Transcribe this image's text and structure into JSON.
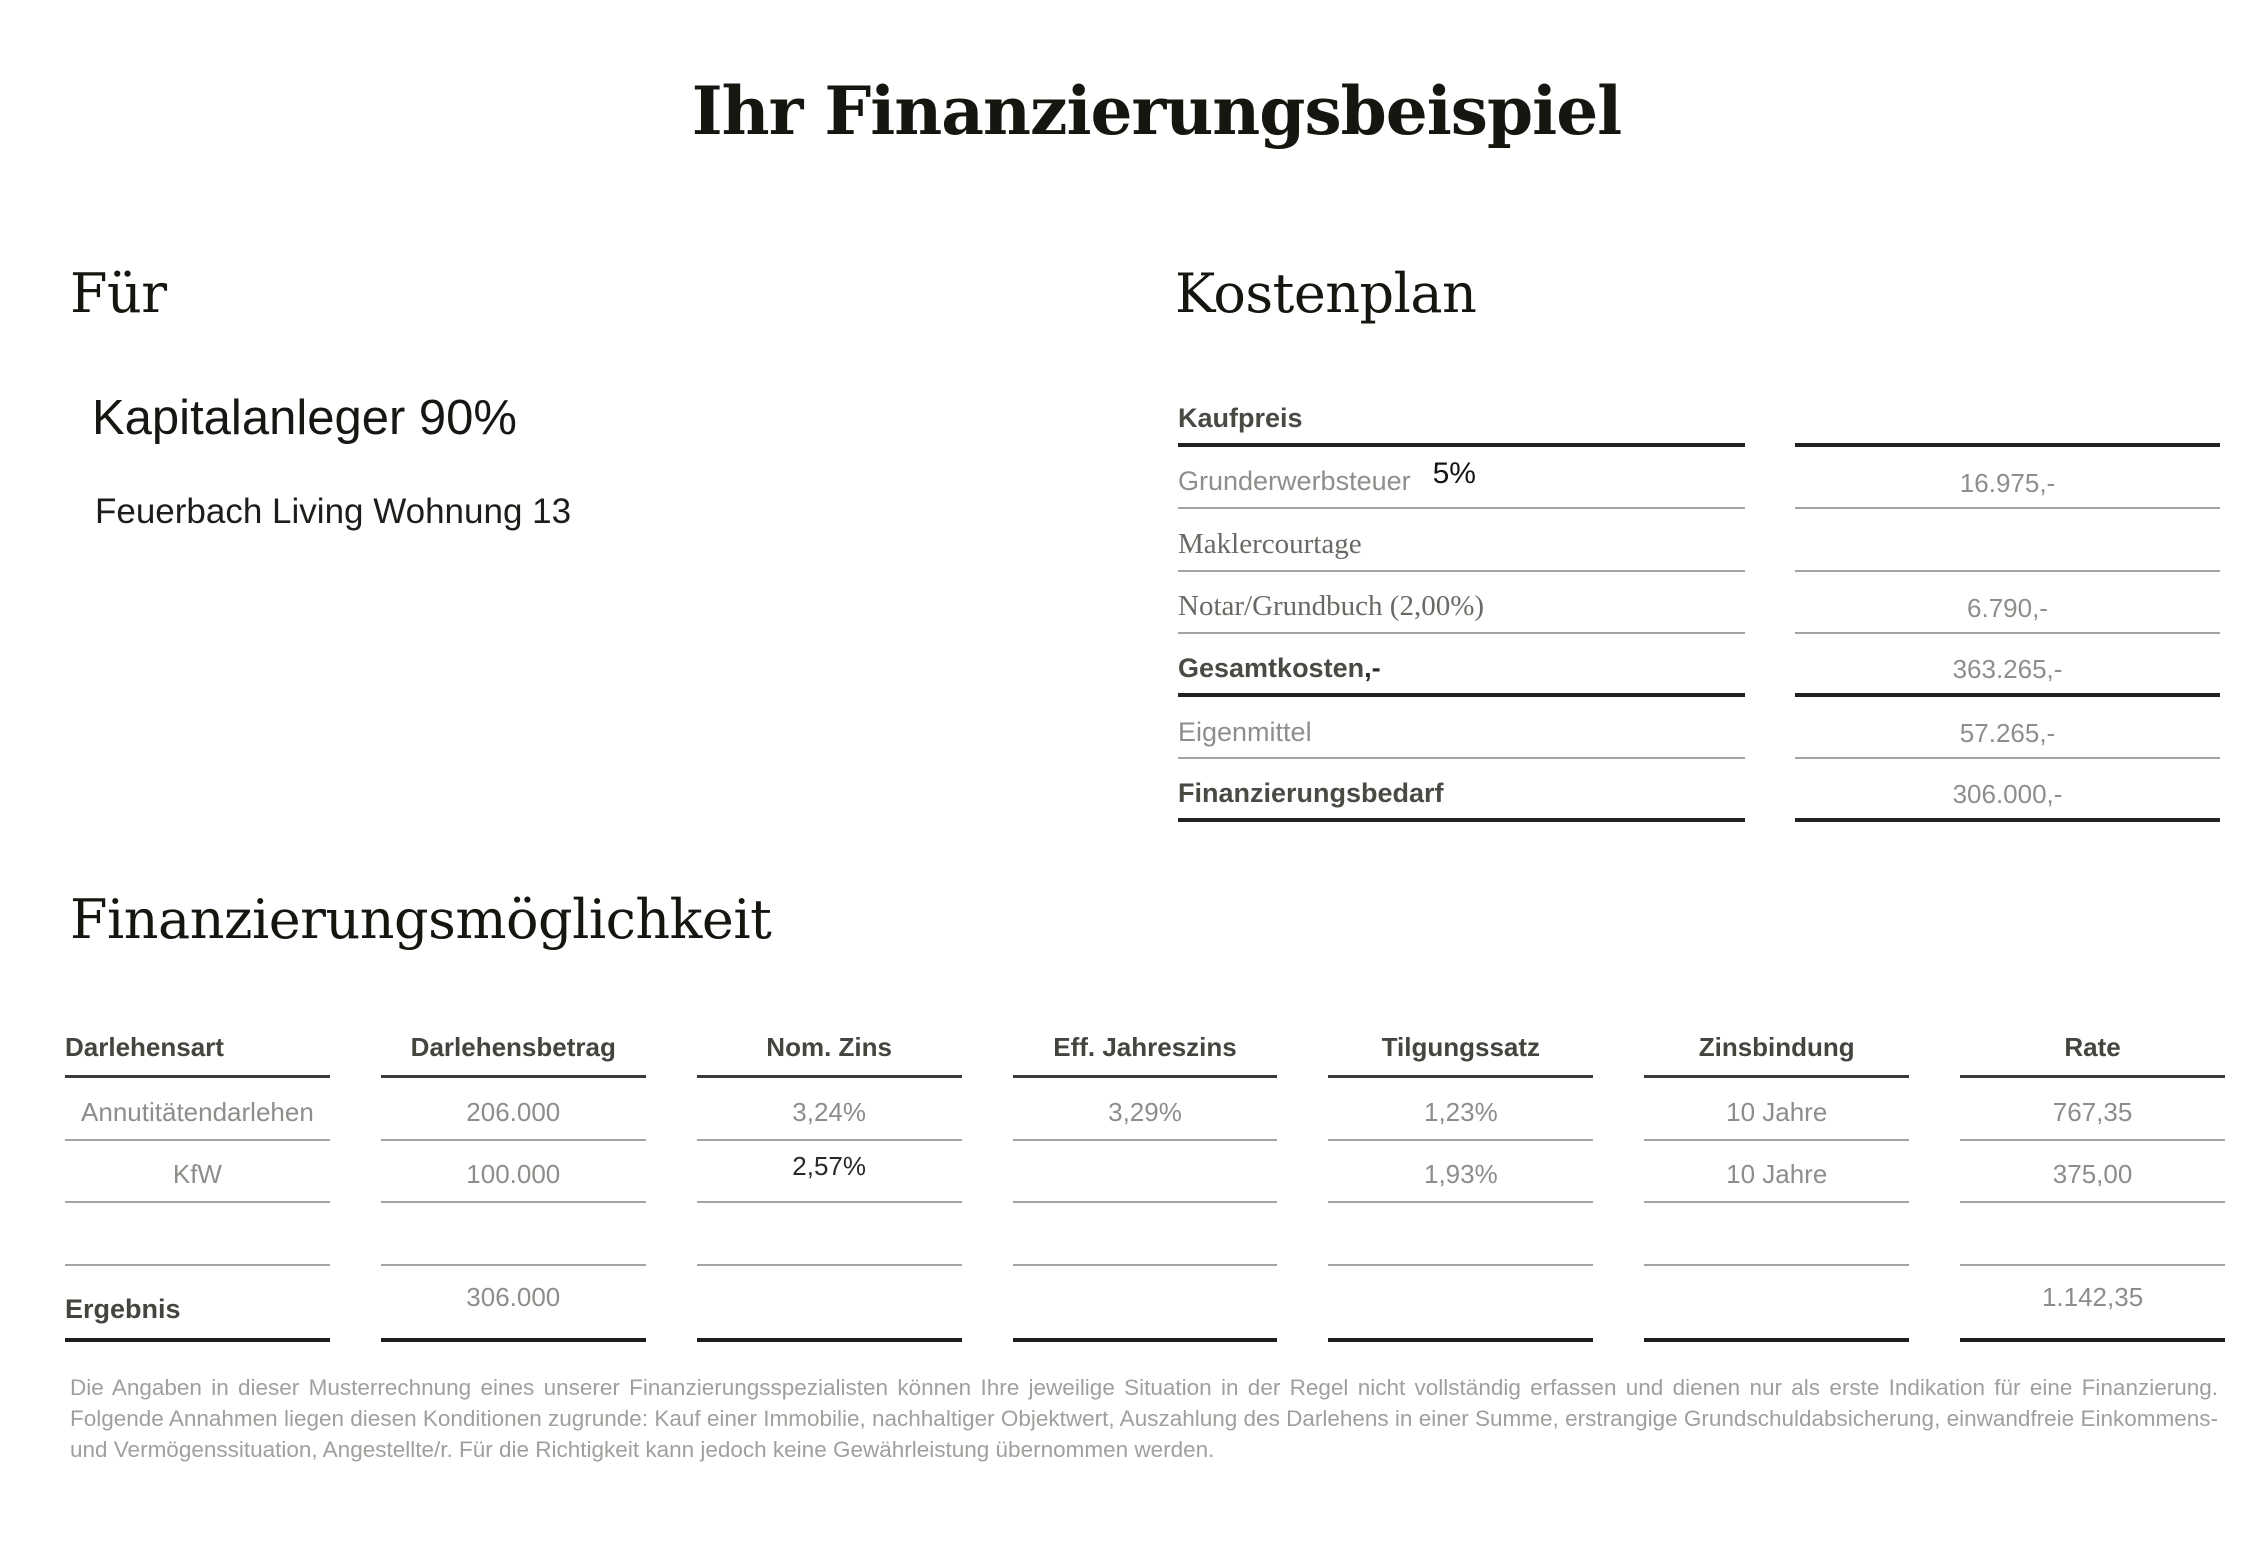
{
  "title": "Ihr Finanzierungsbeispiel",
  "for_section": {
    "heading": "Für",
    "client": "Kapitalanleger 90%",
    "property": "Feuerbach Living Wohnung 13"
  },
  "kostenplan": {
    "heading": "Kostenplan",
    "rows": [
      {
        "label": "Kaufpreis",
        "value": ""
      },
      {
        "label": "Grunderwerbsteuer",
        "annotation": "5%",
        "value": "16.975,-"
      },
      {
        "label": "Maklercourtage",
        "value": ""
      },
      {
        "label": "Notar/Grundbuch (2,00%)",
        "value": "6.790,-"
      },
      {
        "label": "Gesamtkosten",
        "suffix": ",-",
        "value": "363.265,-"
      },
      {
        "label": "Eigenmittel",
        "value": "57.265,-"
      },
      {
        "label": "Finanzierungsbedarf",
        "value": "306.000,-"
      }
    ]
  },
  "finanzierung": {
    "heading": "Finanzierungsmöglichkeit",
    "columns": [
      "Darlehensart",
      "Darlehensbetrag",
      "Nom. Zins",
      "Eff. Jahreszins",
      "Tilgungssatz",
      "Zinsbindung",
      "Rate"
    ],
    "rows": [
      {
        "cells": [
          "Annutitätendarlehen",
          "206.000",
          "3,24%",
          "3,29%",
          "1,23%",
          "10 Jahre",
          "767,35"
        ]
      },
      {
        "cells": [
          "KfW",
          "100.000",
          "2,57%",
          "",
          "1,93%",
          "10 Jahre",
          "375,00"
        ]
      },
      {
        "cells": [
          "",
          "",
          "",
          "",
          "",
          "",
          ""
        ]
      },
      {
        "cells": [
          "Ergebnis",
          "306.000",
          "",
          "",
          "",
          "",
          "1.142,35"
        ]
      }
    ]
  },
  "footer": {
    "text": "Die Angaben in dieser Musterrechnung eines unserer Finanzierungsspezialisten können Ihre jeweilige Situation in der Regel nicht vollständig erfassen und dienen nur als erste Indikation für eine Finanzierung. Folgende Annahmen liegen diesen Konditionen zugrunde: Kauf einer Immobilie, nachhaltiger Objektwert, Auszahlung des Darlehens in einer Summe, erstrangige Grundschuldabsicherung, einwandfreie Einkommens- und Vermögenssituation, Angestellte/r. Für die Richtigkeit kann jedoch keine Gewährleistung übernommen werden."
  }
}
